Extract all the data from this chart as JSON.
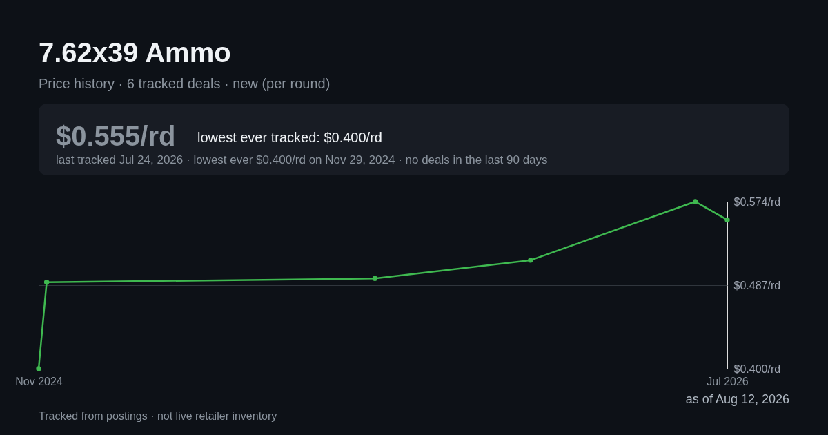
{
  "chart_data": {
    "type": "line",
    "title": "7.62x39 Ammo",
    "subtitle": "Price history · 6 tracked deals · new (per round)",
    "annotations": [
      "$0.555/rd",
      "lowest ever tracked: $0.400/rd",
      "last tracked Jul 24, 2026 · lowest ever $0.400/rd on Nov 29, 2024 · no deals in the last 90 days",
      "as of Aug 12, 2026",
      "Tracked from postings · not live retailer inventory"
    ],
    "x": [
      "2024-11-29",
      "2024-12-06",
      "2025-09-19",
      "2026-02-02",
      "2026-06-26",
      "2026-07-24"
    ],
    "series": [
      {
        "color": "#3fb950",
        "values": [
          0.4,
          0.49,
          0.494,
          0.513,
          0.574,
          0.555
        ]
      }
    ],
    "xlim": [
      "2024-11-29",
      "2026-07-24"
    ],
    "xticks": [
      {
        "value": "2024-11-29",
        "label": "Nov 2024"
      },
      {
        "value": "2026-07-24",
        "label": "Jul 2026"
      }
    ],
    "ylim": [
      0.4,
      0.574
    ],
    "yticks": [
      {
        "value": 0.4,
        "label": "$0.400/rd"
      },
      {
        "value": 0.487,
        "label": "$0.487/rd"
      },
      {
        "value": 0.574,
        "label": "$0.574/rd"
      }
    ],
    "grid": "y",
    "marker": "circle",
    "line_style": "solid"
  }
}
